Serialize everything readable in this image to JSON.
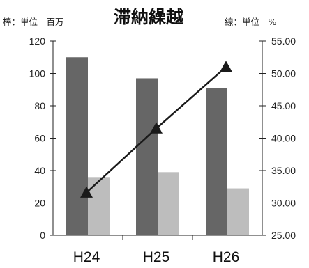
{
  "chart_data": {
    "type": "bar",
    "title": "滞納繰越",
    "left_unit_note": "棒：単位　百万",
    "right_unit_note": "線：単位　%",
    "categories": [
      "H24",
      "H25",
      "H26"
    ],
    "bar_series": [
      {
        "values": [
          110,
          97,
          91
        ],
        "color": "#666666"
      },
      {
        "values": [
          36,
          39,
          29
        ],
        "color": "#bdbdbd"
      }
    ],
    "line_series": {
      "values": [
        31.6,
        41.5,
        51.0
      ],
      "color": "#1a1a1a",
      "marker": "triangle"
    },
    "y_left": {
      "min": 0,
      "max": 120,
      "ticks": [
        "0",
        "20",
        "40",
        "60",
        "80",
        "100",
        "120"
      ]
    },
    "y_right": {
      "min": 25,
      "max": 55,
      "ticks": [
        "25.00",
        "30.00",
        "35.00",
        "40.00",
        "45.00",
        "50.00",
        "55.00"
      ]
    },
    "grid": false,
    "legend": "none"
  }
}
